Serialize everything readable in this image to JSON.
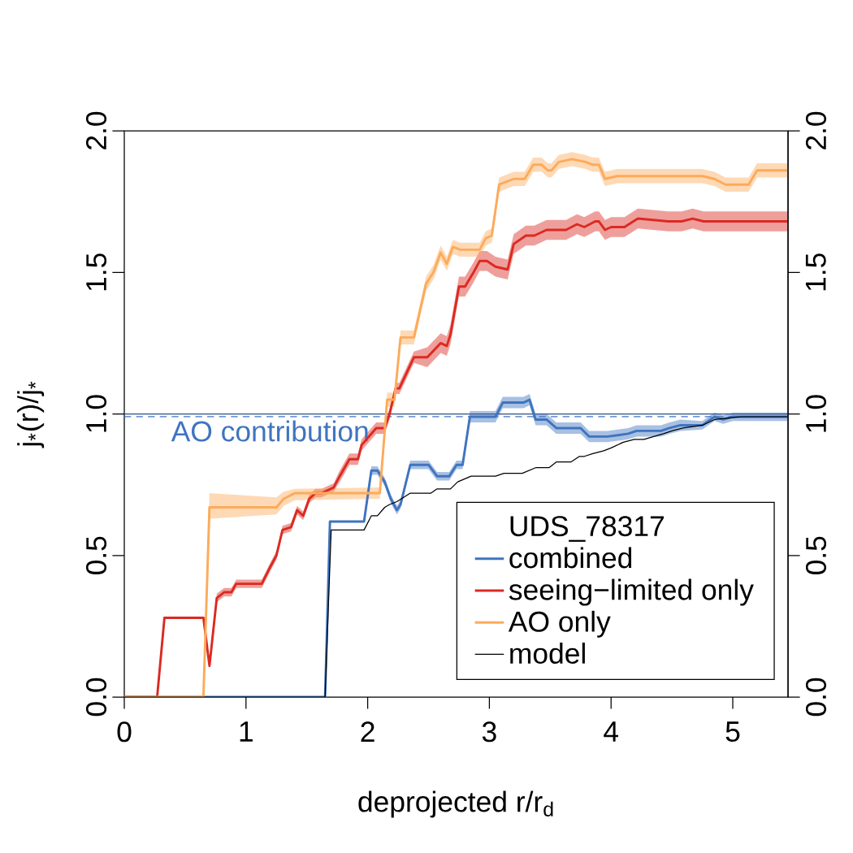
{
  "chart_data": {
    "type": "line",
    "xlabel": "deprojected r/r$_{d}$",
    "ylabel": "j$_{*}$(r)/j$_{*}$",
    "legend_title": "UDS_78317",
    "xlim": [
      0,
      5.454
    ],
    "xticks": [
      0,
      1,
      2,
      3,
      4,
      5
    ],
    "ylim": [
      0,
      2
    ],
    "yticks": [
      {
        "value": 0,
        "label": "0.0"
      },
      {
        "value": 0.5,
        "label": "0.5"
      },
      {
        "value": 1,
        "label": "1.0"
      },
      {
        "value": 1.5,
        "label": "1.5"
      },
      {
        "value": 2,
        "label": "2.0"
      }
    ],
    "y2lim": [
      0,
      2
    ],
    "y2ticks": [
      {
        "value": 0,
        "label": "0.0"
      },
      {
        "value": 0.5,
        "label": "0.5"
      },
      {
        "value": 1,
        "label": "1.0"
      },
      {
        "value": 1.5,
        "label": "1.5"
      },
      {
        "value": 2,
        "label": "2.0"
      }
    ],
    "legend": "bottom right",
    "ref_lines": [
      {
        "axis": "y",
        "value": 1,
        "color": "#2d4e8a",
        "line_style": "solid"
      },
      {
        "axis": "y",
        "value": 0.99,
        "label": "AO contribution",
        "color": "#3f74bf",
        "line_style": "dashed"
      }
    ],
    "series": [
      {
        "name": "combined",
        "color": "#3f74bf",
        "x": [
          0,
          1.65,
          1.69,
          1.97,
          2.03,
          2.08,
          2.14,
          2.19,
          2.24,
          2.27,
          2.35,
          2.5,
          2.57,
          2.67,
          2.73,
          2.78,
          2.84,
          3.05,
          3.11,
          3.28,
          3.33,
          3.38,
          3.47,
          3.55,
          3.75,
          3.82,
          3.97,
          4.14,
          4.21,
          4.41,
          4.48,
          4.57,
          4.75,
          4.85,
          4.92,
          5.0,
          5.07,
          5.45
        ],
        "values": [
          0,
          0,
          0.62,
          0.62,
          0.8,
          0.8,
          0.76,
          0.7,
          0.66,
          0.68,
          0.82,
          0.82,
          0.78,
          0.78,
          0.82,
          0.82,
          0.99,
          0.99,
          1.04,
          1.04,
          1.05,
          0.98,
          0.98,
          0.95,
          0.95,
          0.92,
          0.92,
          0.93,
          0.94,
          0.94,
          0.95,
          0.96,
          0.96,
          0.99,
          0.98,
          0.99,
          0.99,
          0.99
        ],
        "lower": [
          0,
          0,
          0.62,
          0.62,
          0.785,
          0.785,
          0.745,
          0.685,
          0.645,
          0.665,
          0.805,
          0.805,
          0.765,
          0.765,
          0.805,
          0.805,
          0.97,
          0.97,
          1.02,
          1.02,
          1.03,
          0.96,
          0.96,
          0.93,
          0.93,
          0.9,
          0.9,
          0.91,
          0.92,
          0.92,
          0.93,
          0.94,
          0.945,
          0.975,
          0.965,
          0.975,
          0.975,
          0.975
        ],
        "upper": [
          0,
          0,
          0.62,
          0.62,
          0.815,
          0.815,
          0.775,
          0.715,
          0.675,
          0.695,
          0.835,
          0.835,
          0.795,
          0.795,
          0.835,
          0.835,
          1.01,
          1.01,
          1.06,
          1.06,
          1.07,
          1.0,
          1.0,
          0.97,
          0.97,
          0.94,
          0.94,
          0.95,
          0.96,
          0.96,
          0.97,
          0.98,
          0.975,
          1.005,
          0.995,
          1.005,
          1.005,
          1.005
        ]
      },
      {
        "name": "seeing−limited only",
        "color": "#db2a22",
        "x": [
          0,
          0.27,
          0.33,
          0.65,
          0.7,
          0.76,
          0.82,
          0.88,
          0.92,
          1.13,
          1.2,
          1.25,
          1.3,
          1.37,
          1.42,
          1.47,
          1.52,
          1.57,
          1.62,
          1.72,
          1.77,
          1.85,
          1.92,
          1.95,
          2.07,
          2.14,
          2.18,
          2.23,
          2.26,
          2.38,
          2.49,
          2.6,
          2.65,
          2.68,
          2.75,
          2.8,
          2.87,
          2.92,
          2.98,
          3.05,
          3.15,
          3.2,
          3.3,
          3.37,
          3.47,
          3.54,
          3.63,
          3.72,
          3.78,
          3.87,
          3.9,
          3.95,
          4.0,
          4.11,
          4.22,
          4.47,
          4.58,
          4.67,
          4.76,
          5.07,
          5.45
        ],
        "values": [
          0,
          0,
          0.28,
          0.28,
          0.11,
          0.35,
          0.37,
          0.37,
          0.4,
          0.4,
          0.46,
          0.5,
          0.59,
          0.6,
          0.66,
          0.64,
          0.7,
          0.72,
          0.72,
          0.74,
          0.78,
          0.84,
          0.84,
          0.89,
          0.95,
          0.95,
          1.0,
          1.09,
          1.09,
          1.2,
          1.2,
          1.25,
          1.24,
          1.28,
          1.45,
          1.45,
          1.5,
          1.54,
          1.54,
          1.52,
          1.51,
          1.6,
          1.63,
          1.63,
          1.65,
          1.65,
          1.65,
          1.67,
          1.66,
          1.68,
          1.68,
          1.65,
          1.66,
          1.66,
          1.69,
          1.68,
          1.68,
          1.69,
          1.68,
          1.68,
          1.68
        ],
        "lower": [
          0,
          0,
          0.28,
          0.28,
          0.11,
          0.335,
          0.355,
          0.355,
          0.385,
          0.385,
          0.445,
          0.485,
          0.575,
          0.585,
          0.645,
          0.625,
          0.685,
          0.705,
          0.705,
          0.725,
          0.76,
          0.82,
          0.82,
          0.87,
          0.93,
          0.93,
          0.98,
          1.07,
          1.07,
          1.18,
          1.165,
          1.215,
          1.205,
          1.245,
          1.415,
          1.415,
          1.465,
          1.505,
          1.505,
          1.485,
          1.475,
          1.565,
          1.595,
          1.595,
          1.615,
          1.615,
          1.615,
          1.635,
          1.625,
          1.645,
          1.645,
          1.615,
          1.625,
          1.625,
          1.655,
          1.645,
          1.645,
          1.655,
          1.645,
          1.645,
          1.645
        ],
        "upper": [
          0,
          0,
          0.28,
          0.28,
          0.11,
          0.365,
          0.385,
          0.385,
          0.415,
          0.415,
          0.475,
          0.515,
          0.605,
          0.615,
          0.675,
          0.655,
          0.715,
          0.735,
          0.735,
          0.755,
          0.8,
          0.86,
          0.86,
          0.91,
          0.97,
          0.97,
          1.02,
          1.11,
          1.11,
          1.22,
          1.235,
          1.285,
          1.275,
          1.315,
          1.485,
          1.485,
          1.535,
          1.575,
          1.575,
          1.555,
          1.545,
          1.635,
          1.665,
          1.665,
          1.685,
          1.685,
          1.685,
          1.705,
          1.695,
          1.715,
          1.715,
          1.685,
          1.695,
          1.695,
          1.725,
          1.715,
          1.715,
          1.725,
          1.715,
          1.715,
          1.715
        ]
      },
      {
        "name": "AO only",
        "color": "#fdaa5a",
        "x": [
          0,
          0.65,
          0.7,
          1.25,
          1.31,
          1.4,
          2.1,
          2.16,
          2.22,
          2.27,
          2.38,
          2.48,
          2.54,
          2.6,
          2.65,
          2.7,
          2.76,
          2.92,
          2.97,
          3.02,
          3.08,
          3.2,
          3.29,
          3.36,
          3.43,
          3.48,
          3.51,
          3.57,
          3.68,
          3.79,
          3.85,
          3.9,
          3.95,
          4.05,
          4.59,
          4.66,
          4.75,
          4.85,
          4.94,
          5.13,
          5.2,
          5.45
        ],
        "values": [
          0,
          0,
          0.67,
          0.67,
          0.7,
          0.72,
          0.72,
          1.05,
          1.05,
          1.27,
          1.27,
          1.46,
          1.5,
          1.57,
          1.53,
          1.59,
          1.58,
          1.58,
          1.62,
          1.63,
          1.81,
          1.83,
          1.83,
          1.88,
          1.88,
          1.86,
          1.86,
          1.89,
          1.9,
          1.89,
          1.88,
          1.88,
          1.83,
          1.84,
          1.84,
          1.84,
          1.84,
          1.83,
          1.81,
          1.81,
          1.86,
          1.86
        ],
        "lower": [
          0,
          0,
          0.63,
          0.645,
          0.675,
          0.695,
          0.7,
          1.025,
          1.025,
          1.245,
          1.245,
          1.435,
          1.475,
          1.545,
          1.505,
          1.565,
          1.555,
          1.555,
          1.595,
          1.605,
          1.785,
          1.805,
          1.805,
          1.855,
          1.855,
          1.835,
          1.835,
          1.865,
          1.875,
          1.865,
          1.855,
          1.855,
          1.805,
          1.815,
          1.815,
          1.815,
          1.815,
          1.805,
          1.785,
          1.785,
          1.835,
          1.835
        ],
        "upper": [
          0,
          0,
          0.72,
          0.705,
          0.725,
          0.735,
          0.74,
          1.075,
          1.075,
          1.295,
          1.295,
          1.485,
          1.525,
          1.595,
          1.555,
          1.615,
          1.605,
          1.605,
          1.645,
          1.655,
          1.835,
          1.855,
          1.855,
          1.905,
          1.905,
          1.885,
          1.885,
          1.915,
          1.925,
          1.915,
          1.905,
          1.905,
          1.855,
          1.865,
          1.865,
          1.865,
          1.865,
          1.855,
          1.835,
          1.835,
          1.885,
          1.885
        ]
      },
      {
        "name": "model",
        "color": "#000000",
        "x": [
          0,
          1.65,
          1.7,
          1.97,
          2.03,
          2.08,
          2.14,
          2.18,
          2.24,
          2.35,
          2.52,
          2.57,
          2.68,
          2.74,
          2.85,
          3.05,
          3.12,
          3.27,
          3.38,
          3.49,
          3.55,
          3.67,
          3.74,
          3.78,
          3.85,
          3.94,
          4.0,
          4.1,
          4.19,
          4.27,
          4.43,
          4.5,
          4.59,
          4.75,
          4.85,
          5.07,
          5.45
        ],
        "values": [
          0,
          0,
          0.59,
          0.59,
          0.64,
          0.64,
          0.67,
          0.68,
          0.69,
          0.72,
          0.72,
          0.735,
          0.735,
          0.76,
          0.78,
          0.78,
          0.79,
          0.79,
          0.81,
          0.81,
          0.83,
          0.83,
          0.85,
          0.85,
          0.86,
          0.87,
          0.88,
          0.9,
          0.91,
          0.91,
          0.93,
          0.94,
          0.95,
          0.96,
          0.98,
          0.99,
          0.99
        ]
      }
    ]
  }
}
